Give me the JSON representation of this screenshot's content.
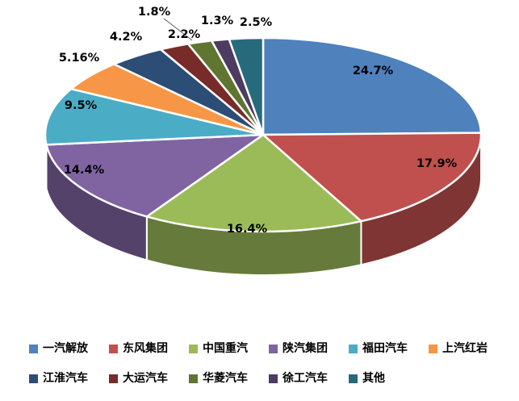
{
  "chart_data": {
    "type": "pie",
    "style": "3d",
    "title": "",
    "legend_position": "bottom",
    "grid": false,
    "slices": [
      {
        "name": "一汽解放",
        "value": 24.7,
        "label": "24.7%",
        "color": "#4F81BD"
      },
      {
        "name": "东风集团",
        "value": 17.9,
        "label": "17.9%",
        "color": "#C0504D"
      },
      {
        "name": "中国重汽",
        "value": 16.4,
        "label": "16.4%",
        "color": "#9BBB59"
      },
      {
        "name": "陕汽集团",
        "value": 14.4,
        "label": "14.4%",
        "color": "#8064A2"
      },
      {
        "name": "福田汽车",
        "value": 9.5,
        "label": "9.5%",
        "color": "#4BACC6"
      },
      {
        "name": "上汽红岩",
        "value": 5.16,
        "label": "5.16%",
        "color": "#F79646"
      },
      {
        "name": "江淮汽车",
        "value": 4.2,
        "label": "4.2%",
        "color": "#2C4D75"
      },
      {
        "name": "大运汽车",
        "value": 2.2,
        "label": "2.2%",
        "color": "#772C2A"
      },
      {
        "name": "华菱汽车",
        "value": 1.8,
        "label": "1.8%",
        "color": "#5F7530"
      },
      {
        "name": "徐工汽车",
        "value": 1.3,
        "label": "1.3%",
        "color": "#4D3B62"
      },
      {
        "name": "其他",
        "value": 2.5,
        "label": "2.5%",
        "color": "#276A7C"
      }
    ]
  }
}
